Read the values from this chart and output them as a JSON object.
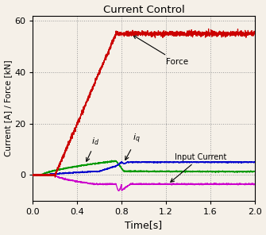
{
  "title": "Current Control",
  "xlabel": "Time[s]",
  "ylabel": "Current [A] / Force [kN]",
  "xlim": [
    0,
    2.0
  ],
  "ylim": [
    -10,
    62
  ],
  "xticks": [
    0,
    0.4,
    0.8,
    1.2,
    1.6,
    2.0
  ],
  "yticks": [
    0,
    20,
    40,
    60
  ],
  "force_color": "#cc0000",
  "id_color": "#009900",
  "iq_color": "#0000cc",
  "input_color": "#cc00cc",
  "bg_color": "#f5f0e8",
  "grid_color": "#999999",
  "force_steady": 55.0,
  "force_ramp_start": 0.2,
  "force_ramp_end": 0.75,
  "id_peak": 5.5,
  "id_settle": 1.5,
  "iq_settle": 5.0,
  "inp_settle": -3.5,
  "inp_spike": -6.0
}
